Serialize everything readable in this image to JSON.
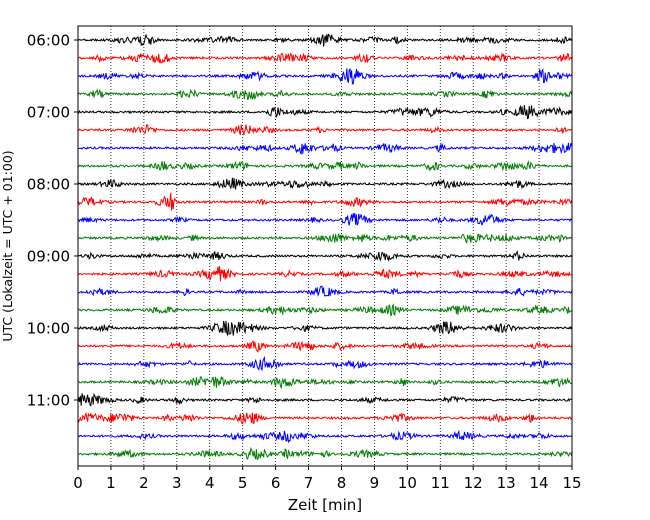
{
  "chart_data": {
    "type": "line",
    "title": "",
    "xlabel": "Zeit  [min]",
    "ylabel": "UTC (Lokalzeit = UTC + 01:00)",
    "xlim": [
      0,
      15
    ],
    "x_ticks": [
      "0",
      "1",
      "2",
      "3",
      "4",
      "5",
      "6",
      "7",
      "8",
      "9",
      "10",
      "11",
      "12",
      "13",
      "14",
      "15"
    ],
    "y_ticks": [
      "06:00",
      "07:00",
      "08:00",
      "09:00",
      "10:00",
      "11:00"
    ],
    "grid": "vertical dotted",
    "trace_interval_min": 15,
    "traces_start": "06:00",
    "traces_end": "11:45",
    "trace_count": 24,
    "trace_colors": [
      "#000000",
      "#ff0000",
      "#0000ff",
      "#007f00"
    ],
    "series": [
      {
        "start": "06:00",
        "color": "#000000"
      },
      {
        "start": "06:15",
        "color": "#ff0000"
      },
      {
        "start": "06:30",
        "color": "#0000ff"
      },
      {
        "start": "06:45",
        "color": "#007f00"
      },
      {
        "start": "07:00",
        "color": "#000000"
      },
      {
        "start": "07:15",
        "color": "#ff0000"
      },
      {
        "start": "07:30",
        "color": "#0000ff"
      },
      {
        "start": "07:45",
        "color": "#007f00"
      },
      {
        "start": "08:00",
        "color": "#000000"
      },
      {
        "start": "08:15",
        "color": "#ff0000"
      },
      {
        "start": "08:30",
        "color": "#0000ff"
      },
      {
        "start": "08:45",
        "color": "#007f00"
      },
      {
        "start": "09:00",
        "color": "#000000"
      },
      {
        "start": "09:15",
        "color": "#ff0000"
      },
      {
        "start": "09:30",
        "color": "#0000ff"
      },
      {
        "start": "09:45",
        "color": "#007f00"
      },
      {
        "start": "10:00",
        "color": "#000000"
      },
      {
        "start": "10:15",
        "color": "#ff0000"
      },
      {
        "start": "10:30",
        "color": "#0000ff"
      },
      {
        "start": "10:45",
        "color": "#007f00"
      },
      {
        "start": "11:00",
        "color": "#000000"
      },
      {
        "start": "11:15",
        "color": "#ff0000"
      },
      {
        "start": "11:30",
        "color": "#0000ff"
      },
      {
        "start": "11:45",
        "color": "#007f00"
      }
    ]
  }
}
